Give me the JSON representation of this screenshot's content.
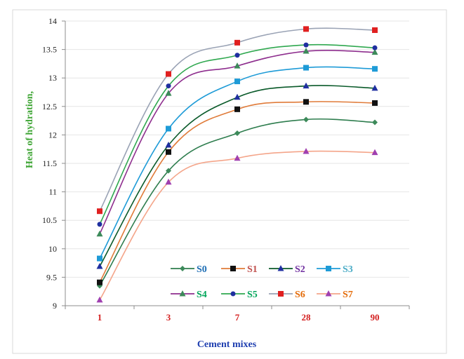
{
  "chart_data": {
    "type": "line",
    "title": "",
    "xlabel": "Cement mixes",
    "ylabel": "Heat of hydration,",
    "categories": [
      "1",
      "3",
      "7",
      "28",
      "90"
    ],
    "ylim": [
      9,
      14
    ],
    "yticks": [
      "9",
      "9.5",
      "10",
      "10.5",
      "11",
      "11.5",
      "12",
      "12.5",
      "13",
      "13.5",
      "14"
    ],
    "grid": "horizontal",
    "legend_position": "inside-bottom",
    "series": [
      {
        "name": "S0",
        "values": [
          9.35,
          11.37,
          12.03,
          12.27,
          12.22
        ],
        "color": "#2E7D4E",
        "label_color": "#1F6FB5",
        "marker": "diamond",
        "marker_color": "#3C8A5A"
      },
      {
        "name": "S1",
        "values": [
          9.41,
          11.7,
          12.45,
          12.58,
          12.56
        ],
        "color": "#E07B39",
        "label_color": "#C0504D",
        "marker": "square",
        "marker_color": "#111111"
      },
      {
        "name": "S2",
        "values": [
          9.69,
          11.82,
          12.66,
          12.86,
          12.82
        ],
        "color": "#0A5A2A",
        "label_color": "#7030A0",
        "marker": "triangle",
        "marker_color": "#1F2FA0"
      },
      {
        "name": "S3",
        "values": [
          9.83,
          12.11,
          12.94,
          13.18,
          13.16
        ],
        "color": "#1E9BD7",
        "label_color": "#4BACC6",
        "marker": "square",
        "marker_color": "#1E9BD7"
      },
      {
        "name": "S4",
        "values": [
          10.26,
          12.73,
          13.21,
          13.47,
          13.45
        ],
        "color": "#8E2E8E",
        "label_color": "#00A65A",
        "marker": "triangle",
        "marker_color": "#3C8A5A"
      },
      {
        "name": "S5",
        "values": [
          10.43,
          12.86,
          13.4,
          13.58,
          13.53
        ],
        "color": "#2FA84F",
        "label_color": "#00A65A",
        "marker": "circle",
        "marker_color": "#1F2FA0"
      },
      {
        "name": "S6",
        "values": [
          10.66,
          13.07,
          13.62,
          13.86,
          13.84
        ],
        "color": "#9AA3B5",
        "label_color": "#E46C0A",
        "marker": "square",
        "marker_color": "#E02020"
      },
      {
        "name": "S7",
        "values": [
          9.1,
          11.17,
          11.59,
          11.71,
          11.69
        ],
        "color": "#F4A58A",
        "label_color": "#E46C0A",
        "marker": "triangle",
        "marker_color": "#A040B0"
      }
    ]
  },
  "colors": {
    "axis": "#8C8C8C",
    "ytick": "#222222",
    "xtick": "#D42020",
    "xlabel": "#1F3FB0",
    "ylabel": "#3FA535",
    "frame": "#D0D0D0"
  }
}
